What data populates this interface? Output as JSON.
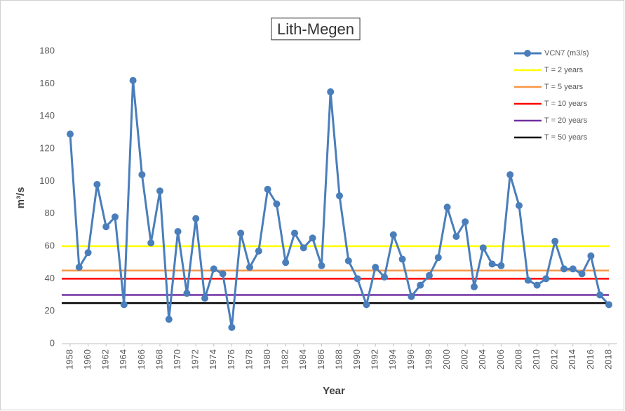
{
  "chart_data": {
    "type": "line",
    "title": "Lith-Megen",
    "x_label": "Year",
    "y_label": "m³/s",
    "x": [
      1958,
      1959,
      1960,
      1961,
      1962,
      1963,
      1964,
      1965,
      1966,
      1967,
      1968,
      1969,
      1970,
      1971,
      1972,
      1973,
      1974,
      1975,
      1976,
      1977,
      1978,
      1979,
      1980,
      1981,
      1982,
      1983,
      1984,
      1985,
      1986,
      1987,
      1988,
      1989,
      1990,
      1991,
      1992,
      1993,
      1994,
      1995,
      1996,
      1997,
      1998,
      1999,
      2000,
      2001,
      2002,
      2003,
      2004,
      2005,
      2006,
      2007,
      2008,
      2009,
      2010,
      2011,
      2012,
      2013,
      2014,
      2015,
      2016,
      2017,
      2018
    ],
    "series": [
      {
        "name": "VCN7 (m3/s)",
        "color": "#4a7ebb",
        "values": [
          129,
          47,
          56,
          98,
          72,
          78,
          24,
          162,
          104,
          62,
          94,
          15,
          69,
          31,
          77,
          28,
          46,
          43,
          10,
          68,
          47,
          57,
          95,
          86,
          50,
          68,
          59,
          65,
          48,
          155,
          91,
          51,
          40,
          24,
          47,
          41,
          67,
          52,
          29,
          36,
          42,
          53,
          84,
          66,
          75,
          35,
          59,
          49,
          48,
          104,
          85,
          39,
          36,
          40,
          63,
          46,
          46,
          43,
          54,
          30,
          24
        ]
      }
    ],
    "reference_lines": [
      {
        "name": "T = 2 years",
        "value": 60,
        "color": "#ffff00"
      },
      {
        "name": "T = 5 years",
        "value": 45,
        "color": "#f79646"
      },
      {
        "name": "T = 10 years",
        "value": 40,
        "color": "#ff0000"
      },
      {
        "name": "T = 20 years",
        "value": 30,
        "color": "#7030a0"
      },
      {
        "name": "T = 50 years",
        "value": 25,
        "color": "#000000"
      }
    ],
    "xlim": [
      1958,
      2018
    ],
    "xticks": [
      1958,
      1960,
      1962,
      1964,
      1966,
      1968,
      1970,
      1972,
      1974,
      1976,
      1978,
      1980,
      1982,
      1984,
      1986,
      1988,
      1990,
      1992,
      1994,
      1996,
      1998,
      2000,
      2002,
      2004,
      2006,
      2008,
      2010,
      2012,
      2014,
      2016,
      2018
    ],
    "ylim": [
      0,
      180
    ],
    "yticks": [
      0,
      20,
      40,
      60,
      80,
      100,
      120,
      140,
      160,
      180
    ],
    "grid": false
  }
}
